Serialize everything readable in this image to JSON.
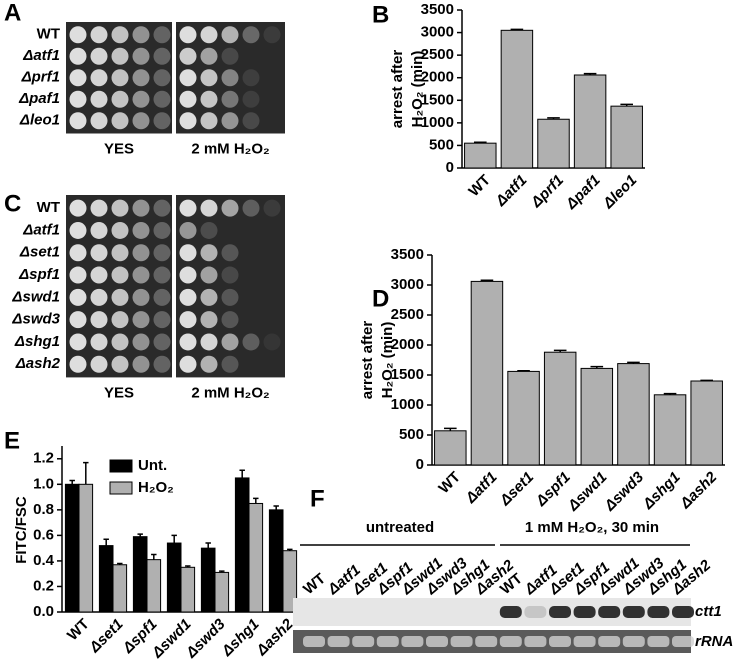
{
  "panel_letters": [
    "A",
    "B",
    "C",
    "D",
    "E",
    "F"
  ],
  "panel_a": {
    "strains": [
      "WT",
      "Δatf1",
      "Δprf1",
      "Δpaf1",
      "Δleo1"
    ],
    "conditions": [
      "YES",
      "2 mM H₂O₂"
    ]
  },
  "panel_c": {
    "strains": [
      "WT",
      "Δatf1",
      "Δset1",
      "Δspf1",
      "Δswd1",
      "Δswd3",
      "Δshg1",
      "Δash2"
    ],
    "conditions": [
      "YES",
      "2 mM H₂O₂"
    ]
  },
  "panel_f": {
    "groups": [
      "untreated",
      "1 mM H₂O₂, 30 min"
    ],
    "lanes": [
      "WT",
      "Δatf1",
      "Δset1",
      "Δspf1",
      "Δswd1",
      "Δswd3",
      "Δshg1",
      "Δash2",
      "WT",
      "Δatf1",
      "Δset1",
      "Δspf1",
      "Δswd1",
      "Δswd3",
      "Δshg1",
      "Δash2"
    ],
    "probes": [
      "ctt1",
      "rRNA"
    ]
  },
  "chart_data": [
    {
      "type": "bar",
      "ylabel": [
        "arrest after",
        "H₂O₂ (min)"
      ],
      "categories": [
        "WT",
        "Δatf1",
        "Δprf1",
        "Δpaf1",
        "Δleo1"
      ],
      "values": [
        550,
        3050,
        1080,
        2060,
        1370
      ],
      "errors": [
        20,
        20,
        30,
        30,
        40
      ],
      "color": "#b0b0b0",
      "ylim": [
        0,
        3500
      ],
      "yticks": [
        0,
        500,
        1000,
        1500,
        2000,
        2500,
        3000,
        3500
      ]
    },
    {
      "type": "bar",
      "ylabel": [
        "arrest after",
        "H₂O₂ (min)"
      ],
      "categories": [
        "WT",
        "Δatf1",
        "Δset1",
        "Δspf1",
        "Δswd1",
        "Δswd3",
        "Δshg1",
        "Δash2"
      ],
      "values": [
        570,
        3060,
        1560,
        1880,
        1610,
        1690,
        1170,
        1400
      ],
      "errors": [
        40,
        20,
        10,
        30,
        30,
        20,
        20,
        10
      ],
      "color": "#b0b0b0",
      "ylim": [
        0,
        3500
      ],
      "yticks": [
        0,
        500,
        1000,
        1500,
        2000,
        2500,
        3000,
        3500
      ]
    },
    {
      "type": "bar",
      "ylabel": [
        "FITC/FSC"
      ],
      "categories": [
        "WT",
        "Δset1",
        "Δspf1",
        "Δswd1",
        "Δswd3",
        "Δshg1",
        "Δash2"
      ],
      "series": [
        {
          "name": "Unt.",
          "color": "#000000",
          "values": [
            1.0,
            0.52,
            0.59,
            0.54,
            0.5,
            1.05,
            0.8
          ],
          "errors": [
            0.03,
            0.05,
            0.02,
            0.06,
            0.04,
            0.06,
            0.03
          ]
        },
        {
          "name": "H₂O₂",
          "color": "#b0b0b0",
          "values": [
            1.0,
            0.37,
            0.41,
            0.35,
            0.31,
            0.85,
            0.48
          ],
          "errors": [
            0.17,
            0.01,
            0.04,
            0.01,
            0.01,
            0.04,
            0.01
          ]
        }
      ],
      "ylim": [
        0,
        1.3
      ],
      "yticks": [
        {
          "value": 0,
          "label": "0.0"
        },
        0.2,
        0.4,
        0.6,
        0.8,
        {
          "value": 1,
          "label": "1.0"
        },
        1.2
      ],
      "legend": "upper center"
    }
  ]
}
